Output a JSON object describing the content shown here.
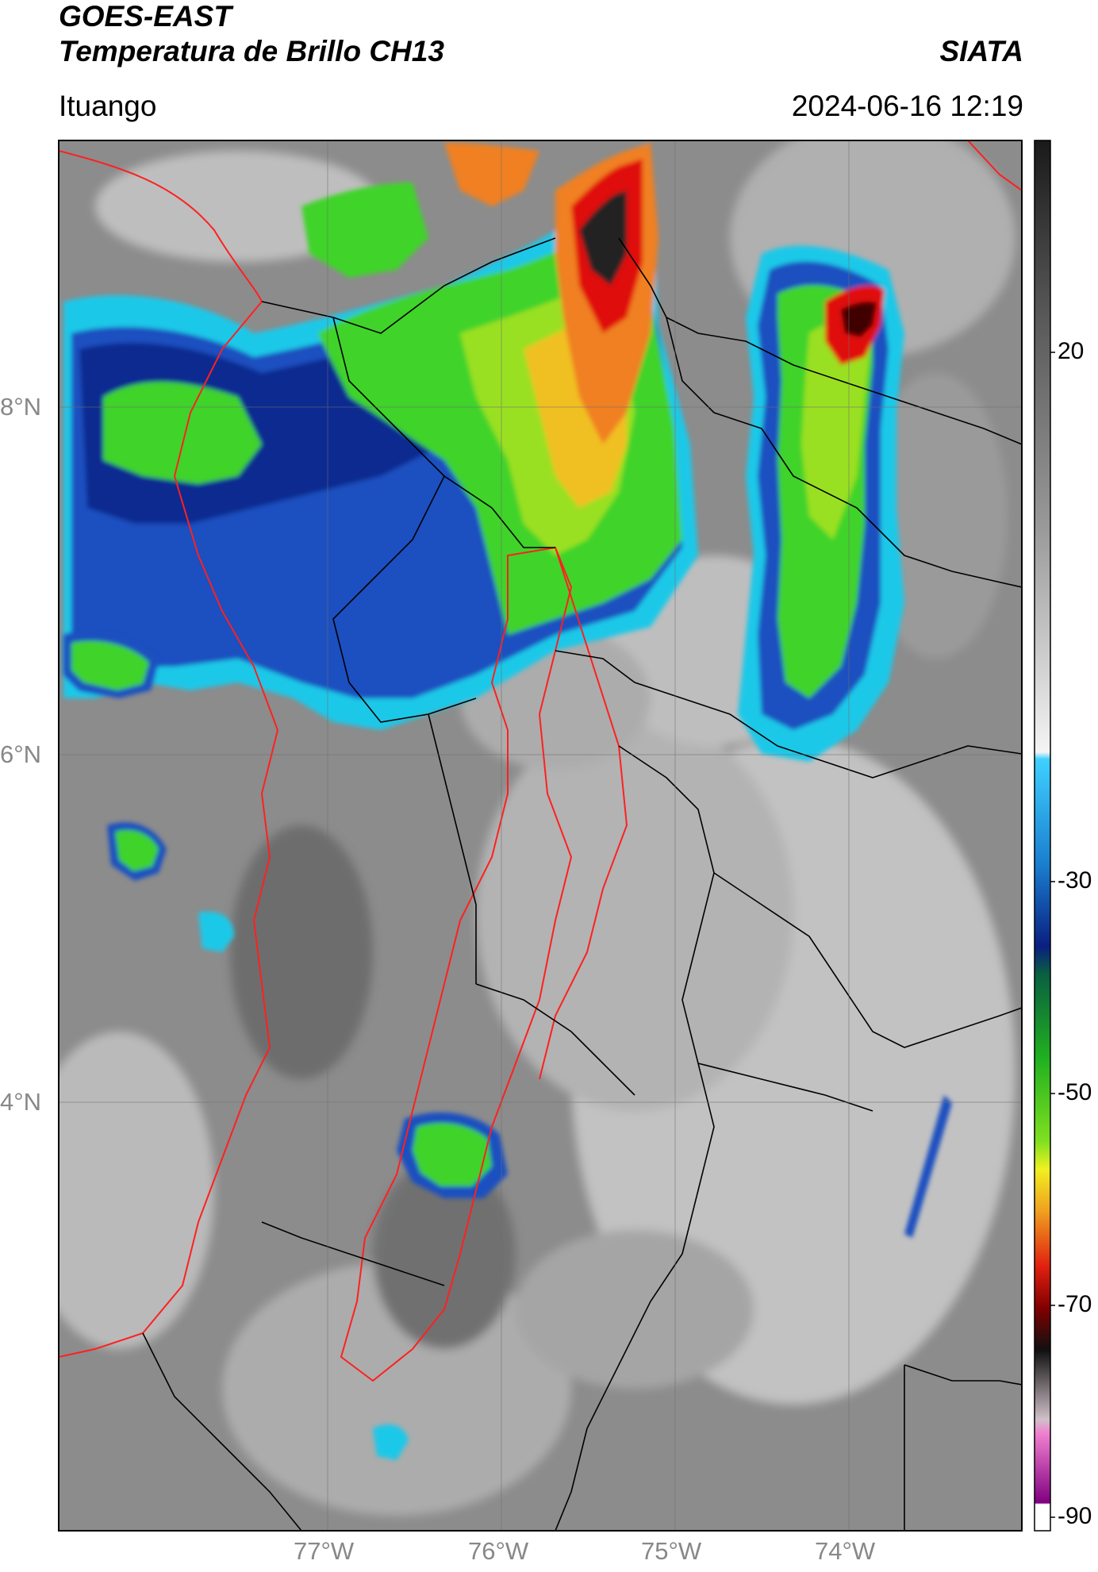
{
  "header": {
    "title_line1": "GOES-EAST",
    "title_line2": "Temperatura de Brillo CH13",
    "brand": "SIATA",
    "location": "Ituango",
    "datetime": "2024-06-16 12:19"
  },
  "map": {
    "lat_labels": [
      "8°N",
      "6°N",
      "4°N"
    ],
    "lon_labels": [
      "77°W",
      "76°W",
      "75°W",
      "74°W"
    ],
    "colorbar": {
      "tick_labels": [
        "20",
        "-30",
        "-50",
        "-70",
        "-90"
      ],
      "colors": {
        "gray": "#7a7a7a",
        "cyan": "#1fc8e8",
        "blue": "#1a3fa8",
        "green": "#3fd32a",
        "yellow": "#f0e020",
        "orange": "#f08020",
        "red": "#e01010",
        "dark": "#2a2a2a",
        "magenta": "#c040c0"
      }
    },
    "border_colors": {
      "department": "#ff2020",
      "municipal": "#000000"
    }
  }
}
